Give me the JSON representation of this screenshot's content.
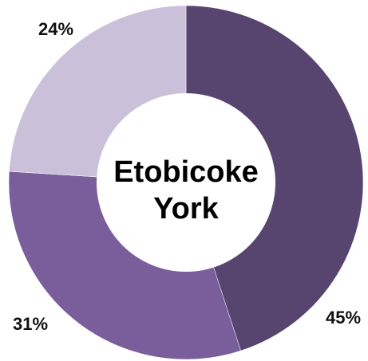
{
  "chart_data": {
    "type": "pie",
    "donut": true,
    "center_label": [
      "Etobicoke",
      "York"
    ],
    "slices": [
      {
        "value": 45,
        "label": "45%",
        "color": "#58456f"
      },
      {
        "value": 31,
        "label": "31%",
        "color": "#7a5e9b"
      },
      {
        "value": 24,
        "label": "24%",
        "color": "#cbc0da"
      }
    ],
    "start_angle_deg": 0,
    "direction": "clockwise",
    "legend": "none"
  }
}
